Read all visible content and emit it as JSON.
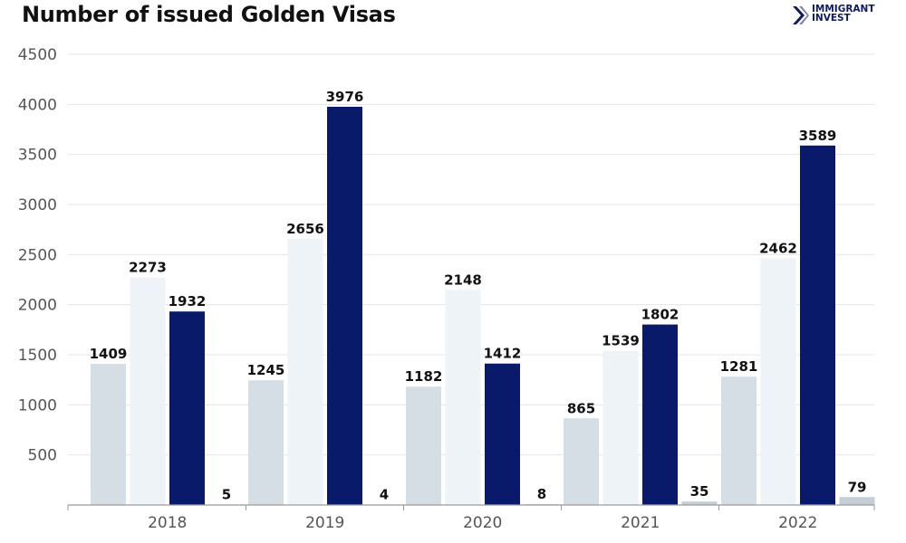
{
  "header": {
    "title": "Number of issued Golden Visas",
    "logo_line1": "IMMIGRANT",
    "logo_line2": "INVEST"
  },
  "colors": {
    "series1": "#d5dee4",
    "series2": "#eef3f7",
    "series3": "#0a1a6a",
    "series4": "#c3ced6",
    "grid": "#e4e4e4",
    "axis": "#555555",
    "brand": "#0f1b5c"
  },
  "chart_data": {
    "type": "bar",
    "title": "Number of issued Golden Visas",
    "xlabel": "",
    "ylabel": "",
    "categories": [
      "2018",
      "2019",
      "2020",
      "2021",
      "2022"
    ],
    "series": [
      {
        "values": [
          1409,
          1245,
          1182,
          865,
          1281
        ]
      },
      {
        "values": [
          2273,
          2656,
          2148,
          1539,
          2462
        ]
      },
      {
        "values": [
          1932,
          3976,
          1412,
          1802,
          3589
        ]
      },
      {
        "values": [
          5,
          4,
          8,
          35,
          79
        ]
      }
    ],
    "ylim": [
      0,
      4500
    ],
    "yticks": [
      500,
      1000,
      1500,
      2000,
      2500,
      3000,
      3500,
      4000,
      4500
    ],
    "grid": true,
    "data_labels": true,
    "legend": "none"
  }
}
